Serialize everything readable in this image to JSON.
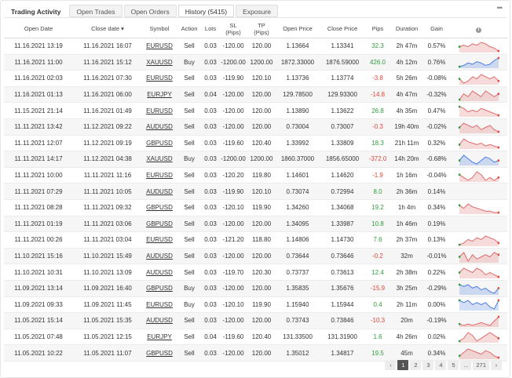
{
  "tabs": [
    {
      "label": "Trading Activity"
    },
    {
      "label": "Open Trades"
    },
    {
      "label": "Open Orders"
    },
    {
      "label": "History (5415)"
    },
    {
      "label": "Exposure"
    }
  ],
  "more_icon": "•••",
  "headers": [
    "Open Date",
    "Close date ▾",
    "Symbol",
    "Action",
    "Lots",
    "SL\n(Pips)",
    "TP\n(Pips)",
    "Open Price",
    "Close Price",
    "Pips",
    "Duration",
    "Gain"
  ],
  "info_icon": "i",
  "colors": {
    "positive": "#2e9e3b",
    "negative": "#e0463a",
    "spark_blue": "#4a7ee0",
    "spark_red": "#e06a6a"
  },
  "rows": [
    {
      "open": "11.16.2021 13:19",
      "close": "11.16.2021 16:07",
      "symbol": "EURUSD",
      "action": "Sell",
      "lots": "0.03",
      "sl": "-120.00",
      "tp": "120.00",
      "open_price": "1.13664",
      "close_price": "1.13341",
      "pips": "32.3",
      "duration": "2h 47m",
      "gain": "0.57%",
      "spark": {
        "color": "red",
        "values": [
          5,
          6,
          5,
          7,
          6,
          8,
          7,
          5,
          4,
          2
        ]
      }
    },
    {
      "open": "11.16.2021 11:00",
      "close": "11.16.2021 15:12",
      "symbol": "XAUUSD",
      "action": "Buy",
      "lots": "0.03",
      "sl": "-1200.00",
      "tp": "1200.00",
      "open_price": "1872.33000",
      "close_price": "1876.59000",
      "pips": "426.0",
      "duration": "4h 12m",
      "gain": "0.76%",
      "spark": {
        "color": "blue",
        "values": [
          2,
          3,
          5,
          4,
          6,
          5,
          3,
          4,
          7,
          9
        ]
      }
    },
    {
      "open": "11.16.2021 02:03",
      "close": "11.16.2021 07:30",
      "symbol": "EURUSD",
      "action": "Sell",
      "lots": "0.03",
      "sl": "-119.90",
      "tp": "120.10",
      "open_price": "1.13736",
      "close_price": "1.13774",
      "pips": "-3.8",
      "duration": "5h 26m",
      "gain": "-0.08%",
      "spark": {
        "color": "red",
        "values": [
          6,
          4,
          5,
          7,
          6,
          8,
          7,
          6,
          7,
          5
        ]
      }
    },
    {
      "open": "11.16.2021 01:13",
      "close": "11.16.2021 06:00",
      "symbol": "EURJPY",
      "action": "Sell",
      "lots": "0.04",
      "sl": "-120.00",
      "tp": "120.00",
      "open_price": "129.78500",
      "close_price": "129.93300",
      "pips": "-14.8",
      "duration": "4h 47m",
      "gain": "-0.32%",
      "spark": {
        "color": "red",
        "values": [
          4,
          6,
          5,
          7,
          6,
          5,
          7,
          6,
          5,
          6
        ]
      }
    },
    {
      "open": "11.15.2021 21:14",
      "close": "11.16.2021 01:49",
      "symbol": "EURUSD",
      "action": "Sell",
      "lots": "0.03",
      "sl": "-120.00",
      "tp": "120.00",
      "open_price": "1.13890",
      "close_price": "1.13622",
      "pips": "26.8",
      "duration": "4h 35m",
      "gain": "0.47%",
      "spark": {
        "color": "red",
        "values": [
          6,
          5,
          3,
          4,
          3,
          5,
          4,
          3,
          2,
          1
        ]
      }
    },
    {
      "open": "11.11.2021 13:42",
      "close": "11.12.2021 09:22",
      "symbol": "AUDUSD",
      "action": "Sell",
      "lots": "0.03",
      "sl": "-120.00",
      "tp": "120.00",
      "open_price": "0.73004",
      "close_price": "0.73007",
      "pips": "-0.3",
      "duration": "19h 40m",
      "gain": "-0.02%",
      "spark": {
        "color": "red",
        "values": [
          5,
          7,
          6,
          5,
          6,
          4,
          5,
          6,
          4,
          3
        ]
      }
    },
    {
      "open": "11.11.2021 12:07",
      "close": "11.12.2021 09:19",
      "symbol": "GBPUSD",
      "action": "Sell",
      "lots": "0.03",
      "sl": "-119.60",
      "tp": "120.40",
      "open_price": "1.33992",
      "close_price": "1.33809",
      "pips": "18.3",
      "duration": "21h 11m",
      "gain": "0.32%",
      "spark": {
        "color": "red",
        "values": [
          4,
          8,
          6,
          5,
          4,
          5,
          3,
          4,
          3,
          2
        ]
      }
    },
    {
      "open": "11.11.2021 14:17",
      "close": "11.12.2021 04:38",
      "symbol": "XAUUSD",
      "action": "Buy",
      "lots": "0.03",
      "sl": "-1200.00",
      "tp": "1200.00",
      "open_price": "1860.37000",
      "close_price": "1856.65000",
      "pips": "-372.0",
      "duration": "14h 20m",
      "gain": "-0.68%",
      "spark": {
        "color": "blue",
        "values": [
          5,
          8,
          6,
          4,
          3,
          5,
          7,
          6,
          4,
          5
        ]
      }
    },
    {
      "open": "11.11.2021 10:00",
      "close": "11.11.2021 11:16",
      "symbol": "EURUSD",
      "action": "Sell",
      "lots": "0.03",
      "sl": "-120.20",
      "tp": "119.80",
      "open_price": "1.14601",
      "close_price": "1.14620",
      "pips": "-1.9",
      "duration": "1h 16m",
      "gain": "-0.04%",
      "spark": {
        "color": "red",
        "values": [
          7,
          6,
          5,
          6,
          8,
          7,
          5,
          6,
          5,
          6
        ]
      }
    },
    {
      "open": "11.11.2021 07:29",
      "close": "11.11.2021 10:05",
      "symbol": "AUDUSD",
      "action": "Sell",
      "lots": "0.03",
      "sl": "-119.90",
      "tp": "120.10",
      "open_price": "0.73074",
      "close_price": "0.72994",
      "pips": "8.0",
      "duration": "2h 36m",
      "gain": "0.14%",
      "spark": null
    },
    {
      "open": "11.11.2021 08:28",
      "close": "11.11.2021 09:32",
      "symbol": "GBPUSD",
      "action": "Sell",
      "lots": "0.03",
      "sl": "-120.10",
      "tp": "119.90",
      "open_price": "1.34260",
      "close_price": "1.34068",
      "pips": "19.2",
      "duration": "1h 4m",
      "gain": "0.34%",
      "spark": {
        "color": "red",
        "values": [
          6,
          4,
          7,
          5,
          4,
          3,
          2,
          2,
          1,
          1
        ]
      }
    },
    {
      "open": "11.11.2021 01:19",
      "close": "11.11.2021 03:06",
      "symbol": "GBPUSD",
      "action": "Sell",
      "lots": "0.03",
      "sl": "-120.00",
      "tp": "120.00",
      "open_price": "1.34095",
      "close_price": "1.33987",
      "pips": "10.8",
      "duration": "1h 46m",
      "gain": "0.19%",
      "spark": null
    },
    {
      "open": "11.11.2021 00:26",
      "close": "11.11.2021 03:04",
      "symbol": "EURUSD",
      "action": "Sell",
      "lots": "0.03",
      "sl": "-121.20",
      "tp": "118.80",
      "open_price": "1.14806",
      "close_price": "1.14730",
      "pips": "7.6",
      "duration": "2h 37m",
      "gain": "0.13%",
      "spark": {
        "color": "red",
        "values": [
          2,
          3,
          5,
          4,
          6,
          5,
          7,
          6,
          5,
          3
        ]
      }
    },
    {
      "open": "11.10.2021 15:16",
      "close": "11.10.2021 15:49",
      "symbol": "AUDUSD",
      "action": "Sell",
      "lots": "0.03",
      "sl": "-120.00",
      "tp": "120.00",
      "open_price": "0.73644",
      "close_price": "0.73646",
      "pips": "-0.2",
      "duration": "32m",
      "gain": "-0.01%",
      "spark": {
        "color": "red",
        "values": [
          5,
          7,
          3,
          6,
          4,
          5,
          6,
          5,
          7,
          6
        ]
      }
    },
    {
      "open": "11.10.2021 10:31",
      "close": "11.10.2021 13:09",
      "symbol": "AUDUSD",
      "action": "Sell",
      "lots": "0.03",
      "sl": "-119.70",
      "tp": "120.30",
      "open_price": "0.73737",
      "close_price": "0.73613",
      "pips": "12.4",
      "duration": "2h 38m",
      "gain": "0.22%",
      "spark": {
        "color": "red",
        "values": [
          4,
          6,
          5,
          4,
          6,
          5,
          3,
          4,
          3,
          2
        ]
      }
    },
    {
      "open": "11.09.2021 13:14",
      "close": "11.09.2021 16:40",
      "symbol": "GBPUSD",
      "action": "Buy",
      "lots": "0.03",
      "sl": "-120.00",
      "tp": "120.00",
      "open_price": "1.35835",
      "close_price": "1.35676",
      "pips": "-15.9",
      "duration": "3h 25m",
      "gain": "-0.29%",
      "spark": {
        "color": "blue",
        "values": [
          7,
          6,
          7,
          5,
          6,
          4,
          5,
          3,
          2,
          5
        ]
      }
    },
    {
      "open": "11.09.2021 09:33",
      "close": "11.09.2021 11:45",
      "symbol": "EURUSD",
      "action": "Buy",
      "lots": "0.03",
      "sl": "-120.10",
      "tp": "119.90",
      "open_price": "1.15940",
      "close_price": "1.15944",
      "pips": "0.4",
      "duration": "2h 11m",
      "gain": "0.00%",
      "spark": {
        "color": "blue",
        "values": [
          6,
          5,
          6,
          4,
          5,
          4,
          5,
          3,
          2,
          6
        ]
      }
    },
    {
      "open": "11.05.2021 15:14",
      "close": "11.05.2021 15:35",
      "symbol": "AUDUSD",
      "action": "Sell",
      "lots": "0.03",
      "sl": "-120.00",
      "tp": "120.00",
      "open_price": "0.73743",
      "close_price": "0.73846",
      "pips": "-10.3",
      "duration": "20m",
      "gain": "-0.19%",
      "spark": {
        "color": "red",
        "values": [
          3,
          2,
          3,
          2,
          3,
          4,
          3,
          2,
          5,
          8
        ]
      }
    },
    {
      "open": "11.05.2021 07:48",
      "close": "11.05.2021 12:15",
      "symbol": "EURJPY",
      "action": "Sell",
      "lots": "0.04",
      "sl": "-119.60",
      "tp": "120.40",
      "open_price": "131.33500",
      "close_price": "131.31900",
      "pips": "1.6",
      "duration": "4h 26m",
      "gain": "0.02%",
      "spark": {
        "color": "red",
        "values": [
          3,
          4,
          6,
          5,
          3,
          4,
          5,
          6,
          5,
          4
        ]
      }
    },
    {
      "open": "11.05.2021 10:22",
      "close": "11.05.2021 11:07",
      "symbol": "GBPUSD",
      "action": "Sell",
      "lots": "0.03",
      "sl": "-120.00",
      "tp": "120.00",
      "open_price": "1.35012",
      "close_price": "1.34817",
      "pips": "19.5",
      "duration": "45m",
      "gain": "0.34%",
      "spark": {
        "color": "red",
        "values": [
          3,
          5,
          7,
          6,
          5,
          4,
          6,
          5,
          3,
          2
        ]
      }
    }
  ],
  "pagination": {
    "prev": "‹",
    "pages": [
      "1",
      "2",
      "3",
      "4",
      "5"
    ],
    "ellipsis": "...",
    "last": "271",
    "next": "›",
    "current": "1"
  }
}
